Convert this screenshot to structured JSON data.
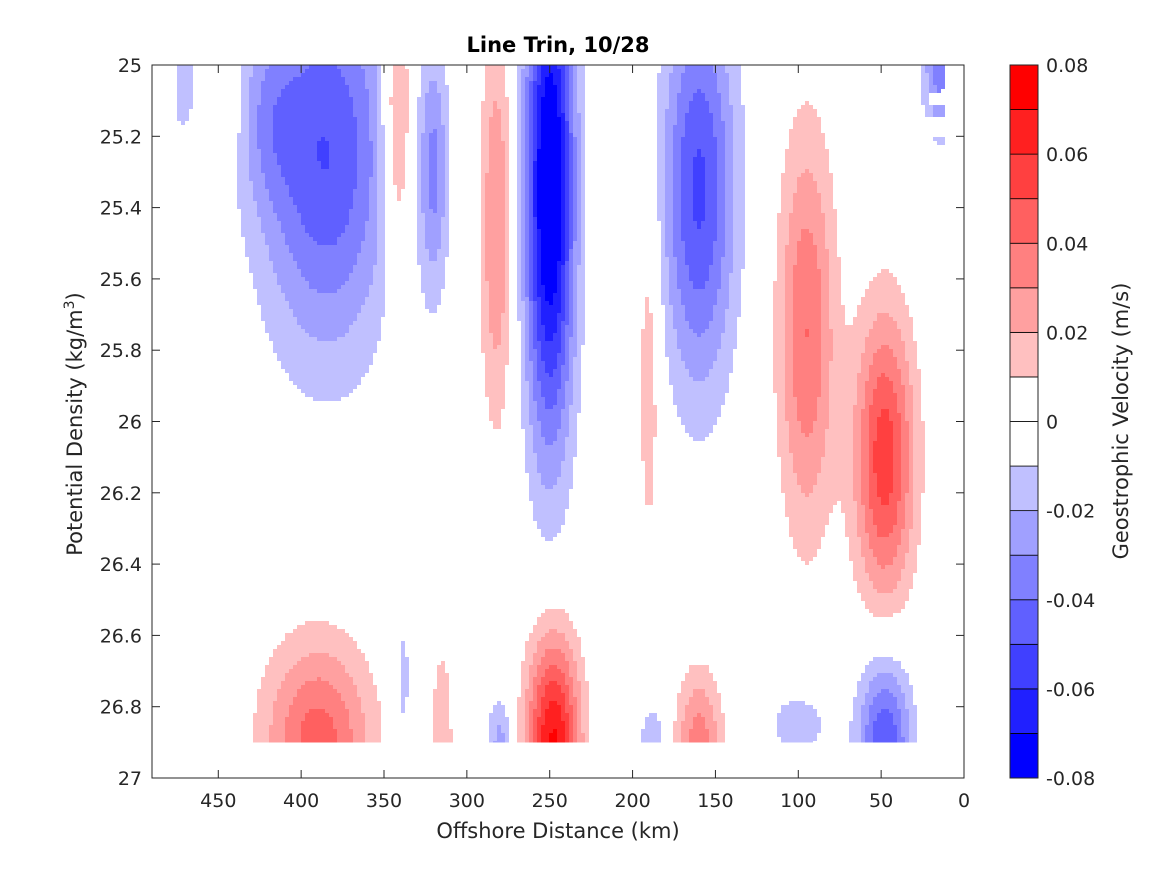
{
  "chart_data": {
    "type": "contour",
    "title": "Line Trin, 10/28",
    "xlabel": "Offshore Distance (km)",
    "ylabel_main": "Potential Density (kg/m",
    "ylabel_sup": "3",
    "ylabel_close": ")",
    "colorbar_label": "Geostrophic Velocity (m/s)",
    "x_reversed": true,
    "y_reversed": true,
    "xlim": [
      0,
      490
    ],
    "ylim": [
      25,
      27
    ],
    "xticks": [
      450,
      400,
      350,
      300,
      250,
      200,
      150,
      100,
      50,
      0
    ],
    "xtick_labels": [
      "450",
      "400",
      "350",
      "300",
      "250",
      "200",
      "150",
      "100",
      "50",
      "0"
    ],
    "yticks": [
      25,
      25.2,
      25.4,
      25.6,
      25.8,
      26,
      26.2,
      26.4,
      26.6,
      26.8,
      27
    ],
    "ytick_labels": [
      "25",
      "25.2",
      "25.4",
      "25.6",
      "25.8",
      "26",
      "26.2",
      "26.4",
      "26.6",
      "26.8",
      "27"
    ],
    "clim": [
      -0.08,
      0.08
    ],
    "colorbar_levels": [
      -0.08,
      -0.07,
      -0.06,
      -0.05,
      -0.04,
      -0.03,
      -0.02,
      -0.01,
      0,
      0.01,
      0.02,
      0.03,
      0.04,
      0.05,
      0.06,
      0.07,
      0.08
    ],
    "colorbar_colors": [
      "#0000ff",
      "#2020ff",
      "#4040ff",
      "#6060ff",
      "#8080ff",
      "#a0a0ff",
      "#c0c0ff",
      "#e0e0ff",
      "#ffffff",
      "#ffe0e0",
      "#ffc0c0",
      "#ffa0a0",
      "#ff8080",
      "#ff6060",
      "#ff4040",
      "#ff2020",
      "#ff0000"
    ],
    "colorbar_ticks": [
      0.08,
      0.06,
      0.04,
      0.02,
      0,
      -0.02,
      -0.04,
      -0.06,
      -0.08
    ],
    "colorbar_tick_labels": [
      "0.08",
      "0.06",
      "0.04",
      "0.02",
      "0",
      "-0.02",
      "-0.04",
      "-0.06",
      "-0.08"
    ],
    "data_extent": {
      "x": [
        10,
        475
      ],
      "y": [
        25,
        26.9
      ]
    },
    "features": [
      {
        "xc": 472,
        "yc": 25.05,
        "sx": 9,
        "sy": 0.16,
        "amp": -0.016
      },
      {
        "xc": 445,
        "yc": 25.08,
        "sx": 8,
        "sy": 0.17,
        "amp": 0.016
      },
      {
        "xc": 385,
        "yc": 25.25,
        "sx": 40,
        "sy": 0.55,
        "amp": -0.05
      },
      {
        "xc": 420,
        "yc": 25.15,
        "sx": 18,
        "sy": 0.25,
        "amp": -0.015
      },
      {
        "xc": 342,
        "yc": 25.15,
        "sx": 9,
        "sy": 0.4,
        "amp": 0.034
      },
      {
        "xc": 320,
        "yc": 25.3,
        "sx": 9,
        "sy": 0.35,
        "amp": -0.03
      },
      {
        "xc": 282,
        "yc": 25.45,
        "sx": 10,
        "sy": 0.55,
        "amp": 0.031
      },
      {
        "xc": 250,
        "yc": 25.35,
        "sx": 15,
        "sy": 0.7,
        "amp": -0.087
      },
      {
        "xc": 190,
        "yc": 25.85,
        "sx": 7,
        "sy": 0.55,
        "amp": 0.018
      },
      {
        "xc": 160,
        "yc": 25.35,
        "sx": 22,
        "sy": 0.55,
        "amp": -0.052
      },
      {
        "xc": 95,
        "yc": 25.75,
        "sx": 17,
        "sy": 0.55,
        "amp": 0.04
      },
      {
        "xc": 48,
        "yc": 26.1,
        "sx": 18,
        "sy": 0.4,
        "amp": 0.056
      },
      {
        "xc": 15,
        "yc": 25.0,
        "sx": 10,
        "sy": 0.2,
        "amp": -0.035
      },
      {
        "xc": 390,
        "yc": 26.9,
        "sx": 32,
        "sy": 0.28,
        "amp": 0.045
      },
      {
        "xc": 338,
        "yc": 26.75,
        "sx": 5,
        "sy": 0.3,
        "amp": -0.014
      },
      {
        "xc": 315,
        "yc": 26.9,
        "sx": 7,
        "sy": 0.3,
        "amp": 0.018
      },
      {
        "xc": 280,
        "yc": 26.9,
        "sx": 8,
        "sy": 0.13,
        "amp": -0.024
      },
      {
        "xc": 248,
        "yc": 26.9,
        "sx": 16,
        "sy": 0.3,
        "amp": 0.072
      },
      {
        "xc": 188,
        "yc": 26.9,
        "sx": 8,
        "sy": 0.11,
        "amp": -0.02
      },
      {
        "xc": 160,
        "yc": 26.9,
        "sx": 14,
        "sy": 0.2,
        "amp": 0.035
      },
      {
        "xc": 100,
        "yc": 26.85,
        "sx": 20,
        "sy": 0.11,
        "amp": -0.016
      },
      {
        "xc": 48,
        "yc": 26.9,
        "sx": 16,
        "sy": 0.24,
        "amp": -0.05
      }
    ]
  }
}
